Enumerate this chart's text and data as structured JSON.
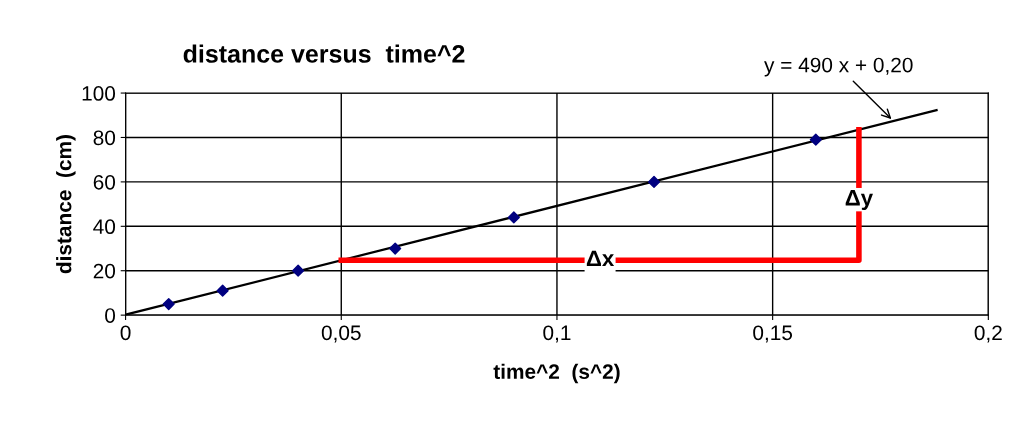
{
  "chart_data": {
    "type": "scatter",
    "title": "distance versus  time^2",
    "xlabel": "time^2  (s^2)",
    "ylabel": "distance  (cm)",
    "xlim": [
      0,
      0.2
    ],
    "xticks": [
      0,
      {
        "value": 0.05,
        "label": "0,05"
      },
      {
        "value": 0.1,
        "label": "0,1"
      },
      {
        "value": 0.15,
        "label": "0,15"
      },
      {
        "value": 0.2,
        "label": "0,2"
      }
    ],
    "ylim": [
      0,
      100
    ],
    "yticks": [
      0,
      20,
      40,
      60,
      80,
      100
    ],
    "grid": true,
    "series": [
      {
        "marker": "diamond",
        "color": "#000080",
        "x": [
          0.01,
          0.0225,
          0.04,
          0.0625,
          0.09,
          0.1225,
          0.16
        ],
        "values": [
          5,
          11,
          20,
          30,
          44,
          60,
          79
        ]
      },
      {
        "type": "line",
        "marker": "none",
        "color": "#000000",
        "x": [
          0,
          0.188
        ],
        "values": [
          0.2,
          92.3
        ]
      },
      {
        "type": "line",
        "marker": "none",
        "color": "#ff0000",
        "x": [
          0.05,
          0.17,
          0.17
        ],
        "values": [
          24.7,
          24.7,
          83.5
        ]
      }
    ],
    "annotations": [
      {
        "text": "y = 490 x + 0,20",
        "x": 0.178,
        "y": 87.4
      },
      {
        "text": "Δx",
        "x": 0.11,
        "y": 24.7
      },
      {
        "text": "Δy",
        "x": 0.17,
        "y": 52
      }
    ]
  }
}
